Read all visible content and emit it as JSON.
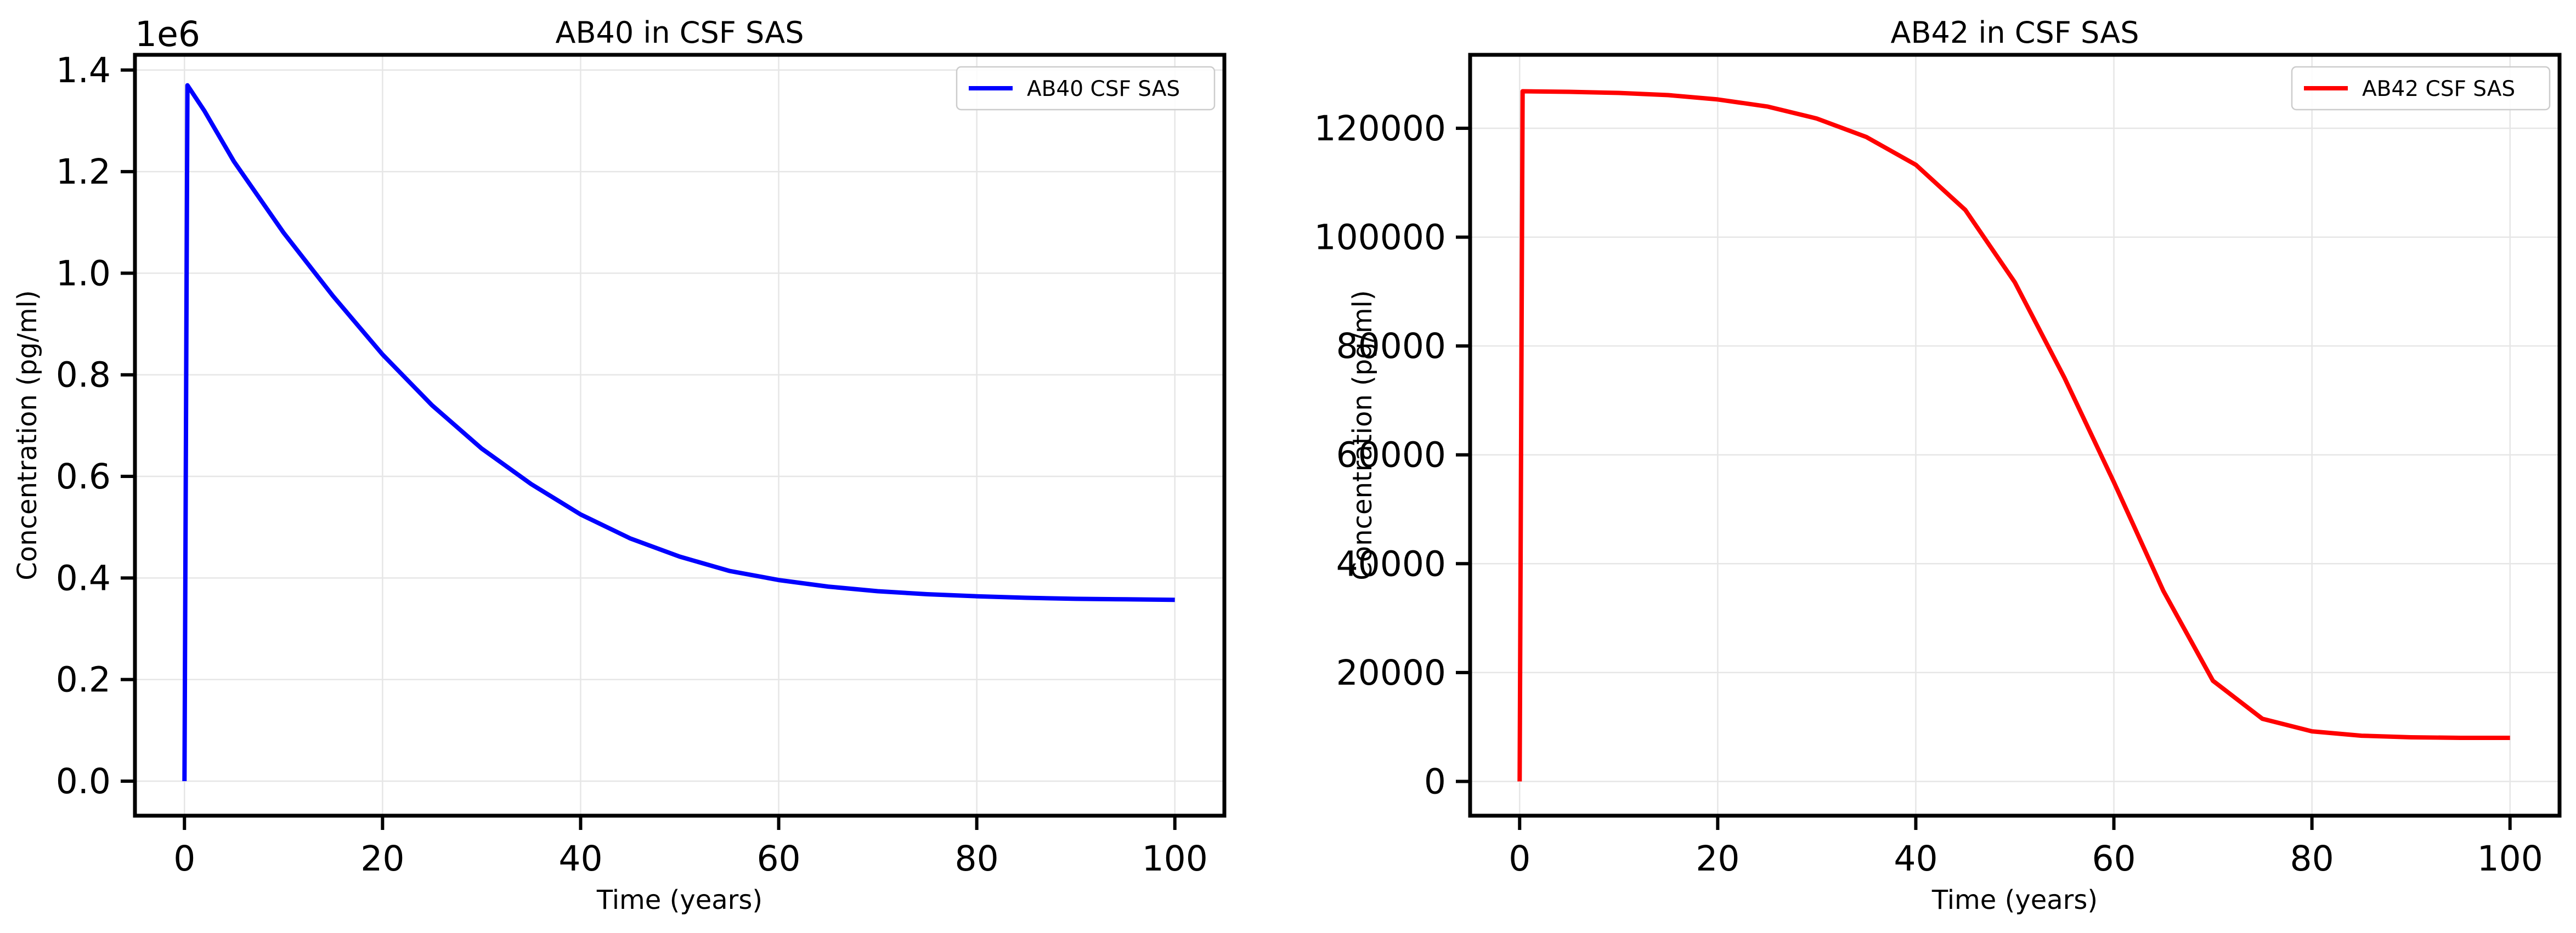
{
  "chart_data": [
    {
      "type": "line",
      "title": "AB40 in CSF SAS",
      "xlabel": "Time (years)",
      "ylabel": "Concentration (pg/ml)",
      "y_offset_label": "1e6",
      "xlim": [
        -5,
        105
      ],
      "ylim": [
        -0.068,
        1.43
      ],
      "x_ticks": [
        0,
        20,
        40,
        60,
        80,
        100
      ],
      "x_tick_labels": [
        "0",
        "20",
        "40",
        "60",
        "80",
        "100"
      ],
      "y_ticks": [
        0.0,
        0.2,
        0.4,
        0.6,
        0.8,
        1.0,
        1.2,
        1.4
      ],
      "y_tick_labels": [
        "0.0",
        "0.2",
        "0.4",
        "0.6",
        "0.8",
        "1.0",
        "1.2",
        "1.4"
      ],
      "grid": true,
      "legend_position": "top-right",
      "series": [
        {
          "name": "AB40 CSF SAS",
          "color": "#0000ff",
          "x": [
            0,
            0.3,
            2,
            5,
            10,
            15,
            20,
            25,
            30,
            35,
            40,
            45,
            50,
            55,
            60,
            65,
            70,
            75,
            80,
            85,
            90,
            95,
            100
          ],
          "y": [
            0,
            1.37,
            1.32,
            1.22,
            1.08,
            0.955,
            0.84,
            0.74,
            0.655,
            0.585,
            0.525,
            0.478,
            0.442,
            0.414,
            0.396,
            0.383,
            0.374,
            0.368,
            0.364,
            0.361,
            0.359,
            0.358,
            0.357
          ]
        }
      ]
    },
    {
      "type": "line",
      "title": "AB42 in CSF SAS",
      "xlabel": "Time (years)",
      "ylabel": "Concentration (pg/ml)",
      "xlim": [
        -5,
        105
      ],
      "ylim": [
        -6300,
        133500
      ],
      "x_ticks": [
        0,
        20,
        40,
        60,
        80,
        100
      ],
      "x_tick_labels": [
        "0",
        "20",
        "40",
        "60",
        "80",
        "100"
      ],
      "y_ticks": [
        0,
        20000,
        40000,
        60000,
        80000,
        100000,
        120000
      ],
      "y_tick_labels": [
        "0",
        "20000",
        "40000",
        "60000",
        "80000",
        "100000",
        "120000"
      ],
      "grid": true,
      "legend_position": "top-right",
      "series": [
        {
          "name": "AB42 CSF SAS",
          "color": "#ff0000",
          "x": [
            0,
            0.3,
            5,
            10,
            15,
            20,
            25,
            30,
            35,
            40,
            45,
            50,
            55,
            60,
            62,
            65,
            70,
            75,
            80,
            85,
            90,
            95,
            100
          ],
          "y": [
            0,
            126800,
            126700,
            126500,
            126100,
            125300,
            124000,
            121800,
            118400,
            113300,
            105000,
            91700,
            74200,
            55000,
            47000,
            35000,
            18500,
            11500,
            9200,
            8400,
            8100,
            8000,
            8000
          ]
        }
      ]
    }
  ]
}
